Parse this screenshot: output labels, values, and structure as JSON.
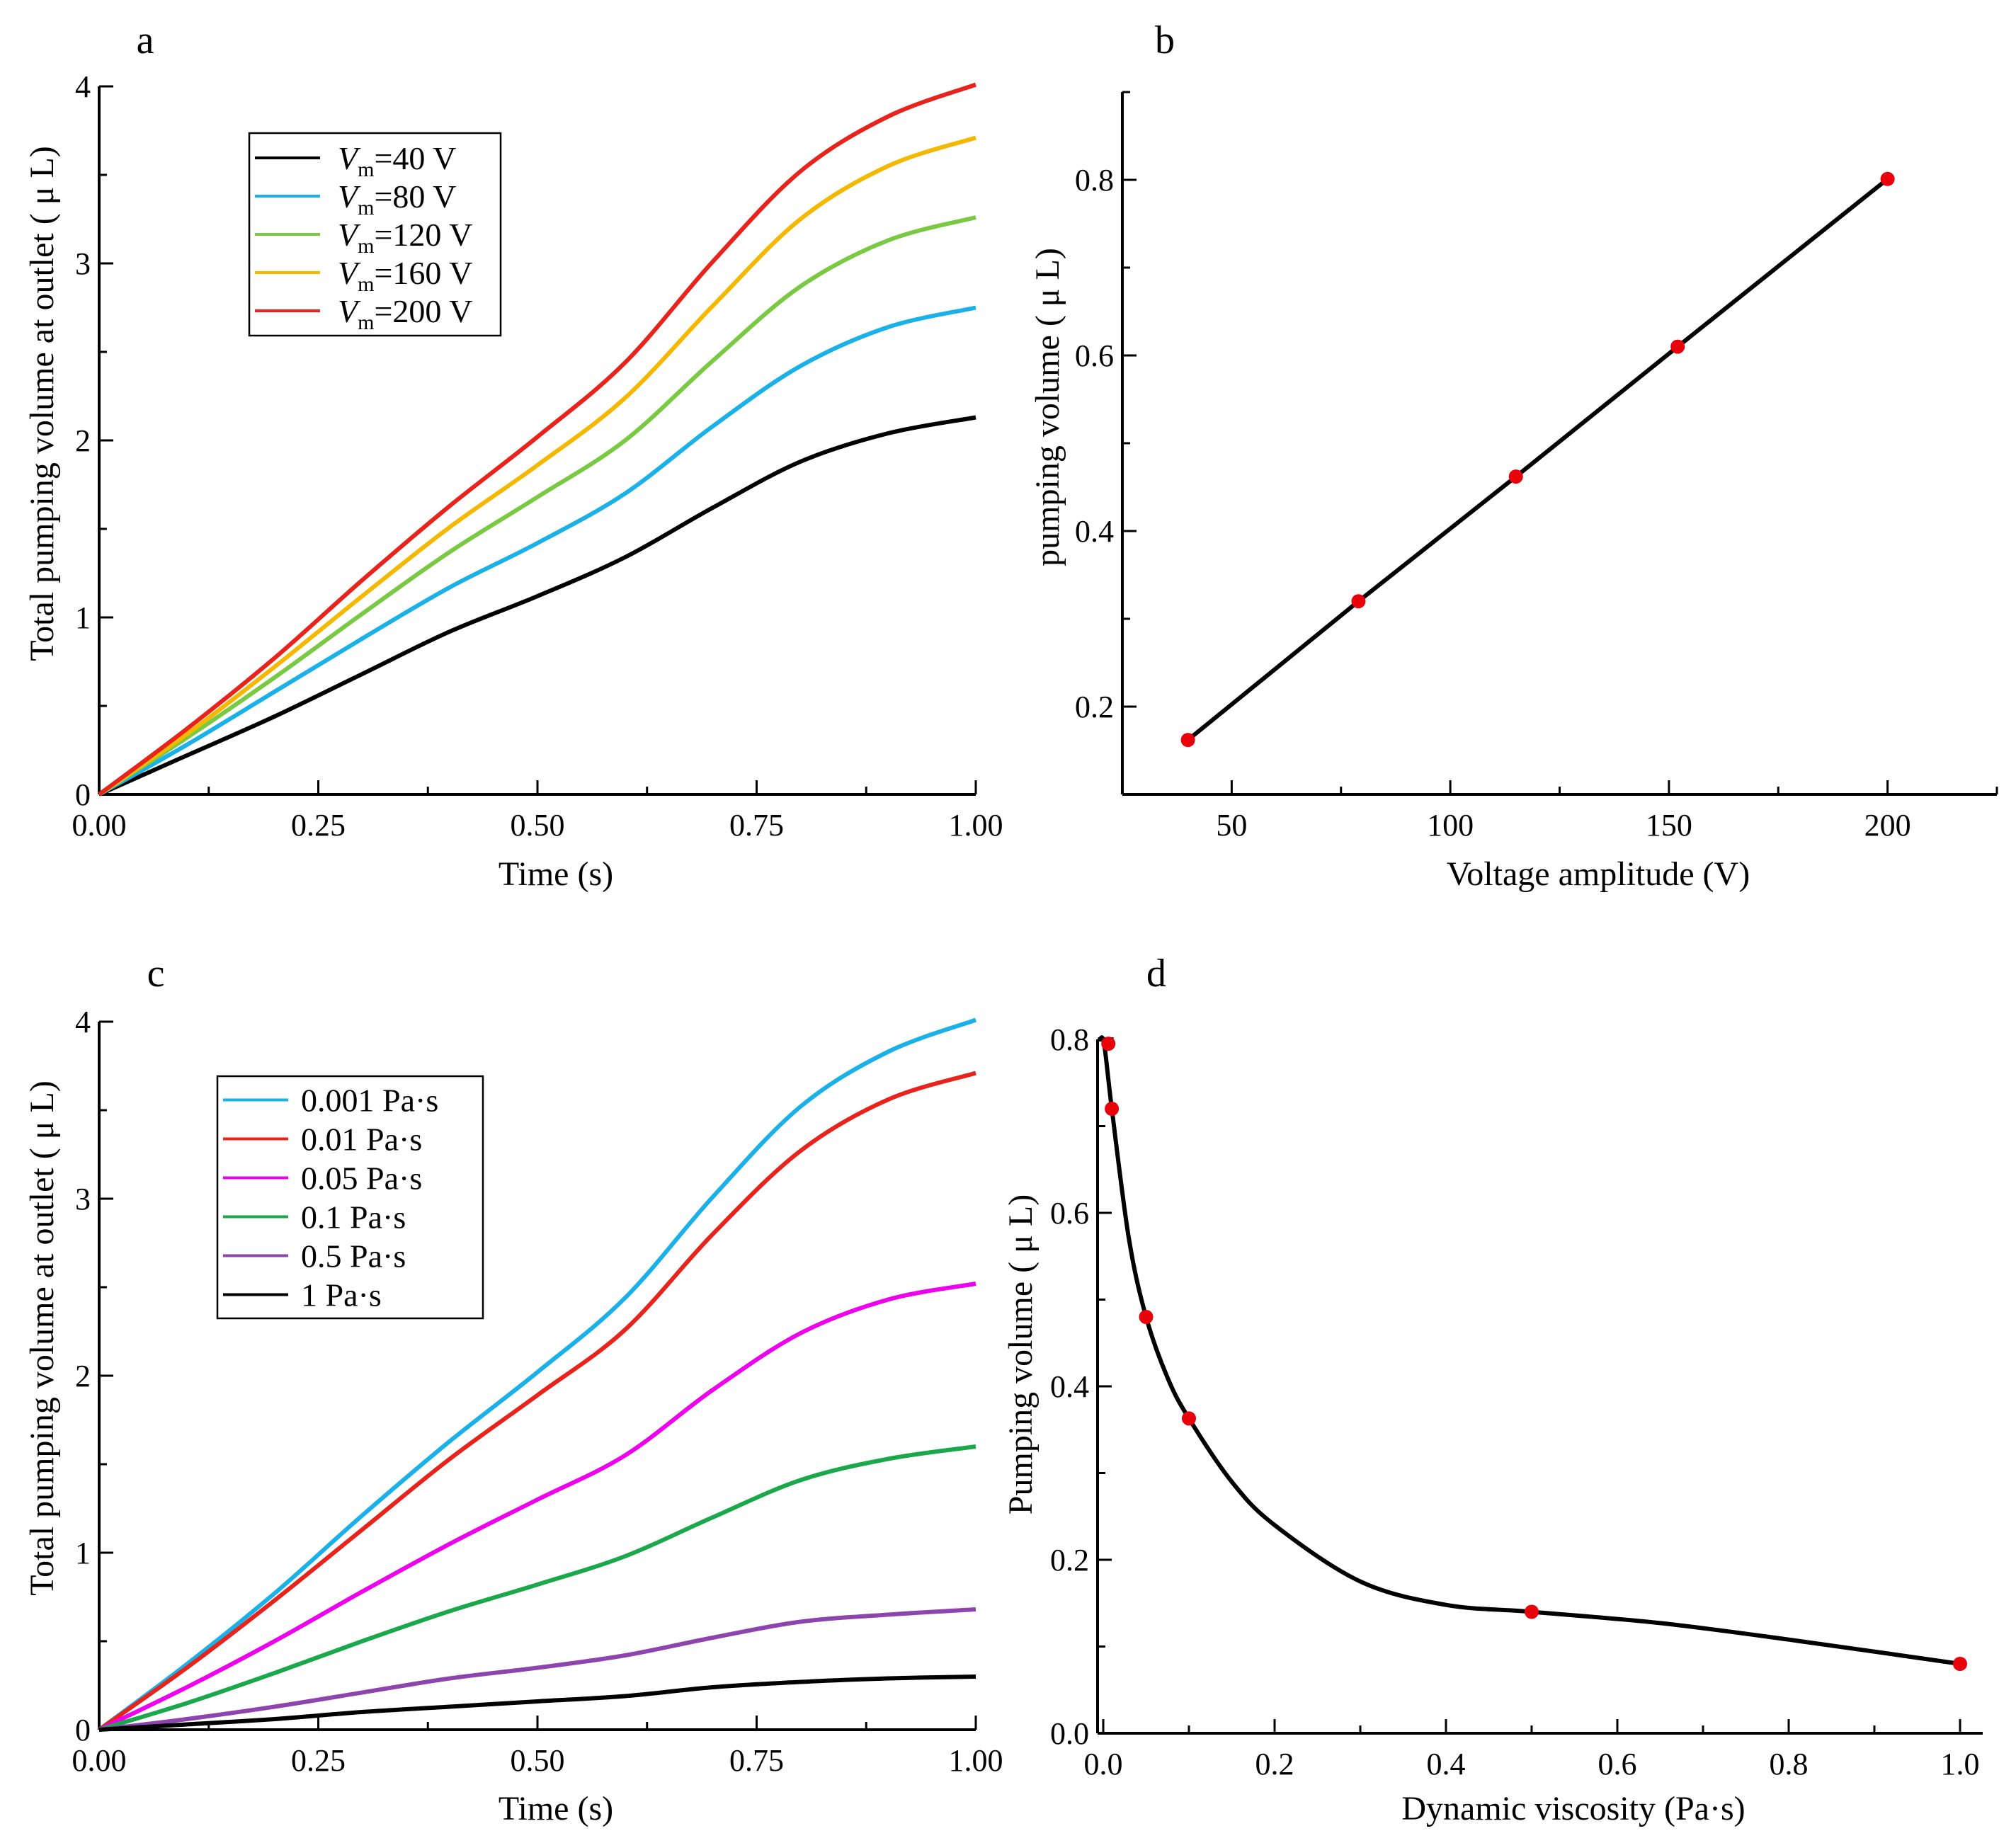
{
  "chart_data": [
    {
      "id": "a",
      "type": "line",
      "panel_label": "a",
      "xlabel": "Time (s)",
      "ylabel": "Total pumping volume at outlet ( μ L)",
      "xlim": [
        0,
        1
      ],
      "ylim": [
        0,
        4
      ],
      "xticks": [
        0,
        0.25,
        0.5,
        0.75,
        1.0
      ],
      "xtick_labels": [
        "0.00",
        "0.25",
        "0.50",
        "0.75",
        "1.00"
      ],
      "yticks": [
        0,
        1,
        2,
        3,
        4
      ],
      "ytick_labels": [
        "0",
        "1",
        "2",
        "3",
        "4"
      ],
      "legend_position": "top-left",
      "x": [
        0,
        0.1,
        0.2,
        0.3,
        0.4,
        0.5,
        0.6,
        0.7,
        0.8,
        0.9,
        1.0
      ],
      "series": [
        {
          "name": "Vm=40 V",
          "legend_italic": "V",
          "legend_sub": "m",
          "legend_rest": "=40 V",
          "color": "#000000",
          "values": [
            0,
            0.22,
            0.44,
            0.68,
            0.92,
            1.12,
            1.34,
            1.62,
            1.88,
            2.04,
            2.13
          ]
        },
        {
          "name": "Vm=80 V",
          "legend_italic": "V",
          "legend_sub": "m",
          "legend_rest": "=80 V",
          "color": "#1ab0e8",
          "values": [
            0,
            0.28,
            0.58,
            0.88,
            1.17,
            1.42,
            1.7,
            2.08,
            2.42,
            2.64,
            2.75
          ]
        },
        {
          "name": "Vm=120 V",
          "legend_italic": "V",
          "legend_sub": "m",
          "legend_rest": "=120 V",
          "color": "#7ac943",
          "values": [
            0,
            0.32,
            0.66,
            1.02,
            1.37,
            1.68,
            2.0,
            2.45,
            2.87,
            3.13,
            3.26
          ]
        },
        {
          "name": "Vm=160 V",
          "legend_italic": "V",
          "legend_sub": "m",
          "legend_rest": "=160 V",
          "color": "#f5b800",
          "values": [
            0,
            0.34,
            0.72,
            1.12,
            1.51,
            1.86,
            2.24,
            2.76,
            3.25,
            3.55,
            3.71
          ]
        },
        {
          "name": "Vm=200 V",
          "legend_italic": "V",
          "legend_sub": "m",
          "legend_rest": "=200 V",
          "color": "#e8231c",
          "values": [
            0,
            0.37,
            0.77,
            1.21,
            1.63,
            2.02,
            2.44,
            3.01,
            3.52,
            3.83,
            4.01
          ]
        }
      ]
    },
    {
      "id": "b",
      "type": "line",
      "panel_label": "b",
      "xlabel": "Voltage amplitude (V)",
      "ylabel": "pumping volume ( μ L)",
      "xlim": [
        25,
        225
      ],
      "ylim": [
        0.1,
        0.9
      ],
      "xticks": [
        50,
        100,
        150,
        200
      ],
      "xtick_labels": [
        "50",
        "100",
        "150",
        "200"
      ],
      "yticks": [
        0.2,
        0.4,
        0.6,
        0.8
      ],
      "ytick_labels": [
        "0.2",
        "0.4",
        "0.6",
        "0.8"
      ],
      "series": [
        {
          "name": "pumping volume",
          "color": "#000000",
          "marker_color": "#e8000b",
          "x": [
            40,
            79,
            115,
            152,
            200
          ],
          "values": [
            0.162,
            0.32,
            0.462,
            0.61,
            0.801
          ]
        }
      ]
    },
    {
      "id": "c",
      "type": "line",
      "panel_label": "c",
      "xlabel": "Time (s)",
      "ylabel": "Total pumping volume at outlet ( μ L)",
      "xlim": [
        0,
        1
      ],
      "ylim": [
        0,
        4
      ],
      "xticks": [
        0,
        0.25,
        0.5,
        0.75,
        1.0
      ],
      "xtick_labels": [
        "0.00",
        "0.25",
        "0.50",
        "0.75",
        "1.00"
      ],
      "yticks": [
        0,
        1,
        2,
        3,
        4
      ],
      "ytick_labels": [
        "0",
        "1",
        "2",
        "3",
        "4"
      ],
      "legend_position": "top-left",
      "x": [
        0,
        0.1,
        0.2,
        0.3,
        0.4,
        0.5,
        0.6,
        0.7,
        0.8,
        0.9,
        1.0
      ],
      "series": [
        {
          "name": "0.001 Pa·s",
          "color": "#1ab0e8",
          "values": [
            0,
            0.37,
            0.77,
            1.21,
            1.63,
            2.02,
            2.44,
            3.01,
            3.52,
            3.83,
            4.01
          ]
        },
        {
          "name": "0.01 Pa·s",
          "color": "#e8231c",
          "values": [
            0,
            0.35,
            0.73,
            1.13,
            1.53,
            1.89,
            2.26,
            2.8,
            3.27,
            3.56,
            3.71
          ]
        },
        {
          "name": "0.05 Pa·s",
          "color": "#ee00ee",
          "values": [
            0,
            0.24,
            0.5,
            0.78,
            1.05,
            1.3,
            1.55,
            1.92,
            2.24,
            2.43,
            2.52
          ]
        },
        {
          "name": "0.1 Pa·s",
          "color": "#1aa84a",
          "values": [
            0,
            0.15,
            0.32,
            0.5,
            0.67,
            0.82,
            0.98,
            1.2,
            1.41,
            1.53,
            1.6
          ]
        },
        {
          "name": "0.5 Pa·s",
          "color": "#8e44ad",
          "values": [
            0,
            0.06,
            0.13,
            0.21,
            0.29,
            0.35,
            0.42,
            0.52,
            0.61,
            0.65,
            0.68
          ]
        },
        {
          "name": "1 Pa·s",
          "color": "#000000",
          "values": [
            0,
            0.03,
            0.06,
            0.1,
            0.13,
            0.16,
            0.19,
            0.24,
            0.27,
            0.29,
            0.3
          ]
        }
      ]
    },
    {
      "id": "d",
      "type": "line",
      "panel_label": "d",
      "xlabel": "Dynamic viscosity (Pa·s)",
      "ylabel": "Pumping volume ( μ L)",
      "xlim": [
        0,
        1.0
      ],
      "ylim": [
        0,
        0.8
      ],
      "xticks": [
        0,
        0.2,
        0.4,
        0.6,
        0.8,
        1.0
      ],
      "xtick_labels": [
        "0.0",
        "0.2",
        "0.4",
        "0.6",
        "0.8",
        "1.0"
      ],
      "yticks": [
        0,
        0.2,
        0.4,
        0.6,
        0.8
      ],
      "ytick_labels": [
        "0.0",
        "0.2",
        "0.4",
        "0.6",
        "0.8"
      ],
      "markers": {
        "x": [
          0.001,
          0.01,
          0.05,
          0.1,
          0.5,
          1.0
        ],
        "values": [
          0.795,
          0.72,
          0.48,
          0.363,
          0.14,
          0.08
        ]
      },
      "curve": {
        "x": [
          -0.004,
          0.001,
          0.01,
          0.03,
          0.05,
          0.075,
          0.1,
          0.15,
          0.2,
          0.3,
          0.4,
          0.5,
          0.65,
          0.8,
          1.0
        ],
        "values": [
          0.8,
          0.795,
          0.72,
          0.57,
          0.48,
          0.41,
          0.363,
          0.29,
          0.24,
          0.175,
          0.148,
          0.14,
          0.127,
          0.108,
          0.08
        ]
      },
      "series": [
        {
          "name": "Pumping volume",
          "color": "#000000",
          "marker_color": "#e8000b"
        }
      ]
    }
  ]
}
